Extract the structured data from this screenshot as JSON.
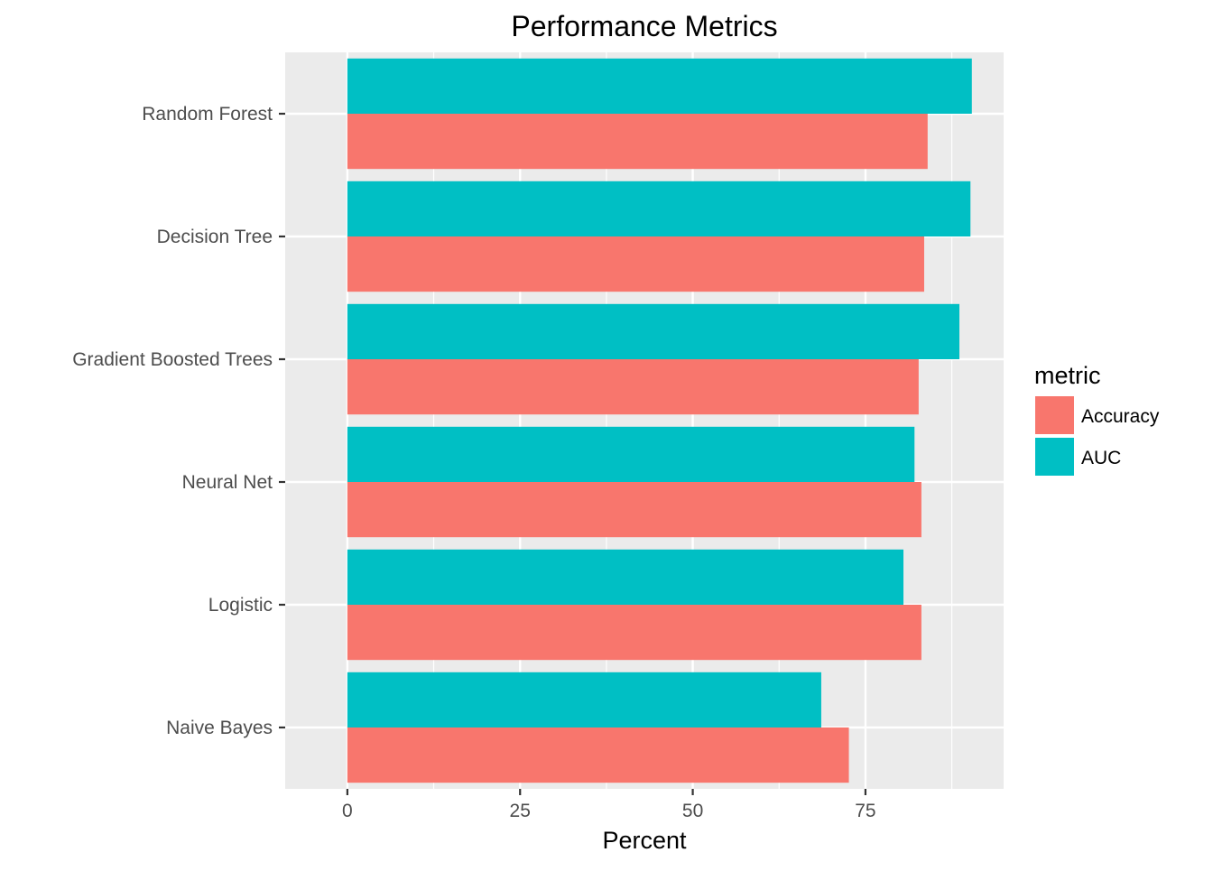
{
  "chart_data": {
    "type": "bar",
    "orientation": "horizontal",
    "title": "Performance Metrics",
    "xlabel": "Percent",
    "ylabel": "",
    "xlim": [
      -9,
      95
    ],
    "xticks": [
      0,
      25,
      50,
      75
    ],
    "categories": [
      "Naive Bayes",
      "Logistic",
      "Neural Net",
      "Gradient Boosted Trees",
      "Decision Tree",
      "Random Forest"
    ],
    "series": [
      {
        "name": "Accuracy",
        "color": "#F8766D",
        "values": [
          72.6,
          83.1,
          83.1,
          82.7,
          83.5,
          84.0
        ]
      },
      {
        "name": "AUC",
        "color": "#00BFC4",
        "values": [
          68.6,
          80.5,
          82.1,
          88.6,
          90.2,
          90.4
        ]
      }
    ],
    "legend": {
      "title": "metric",
      "position": "right"
    },
    "panel_background": "#EBEBEB",
    "grid": true
  }
}
